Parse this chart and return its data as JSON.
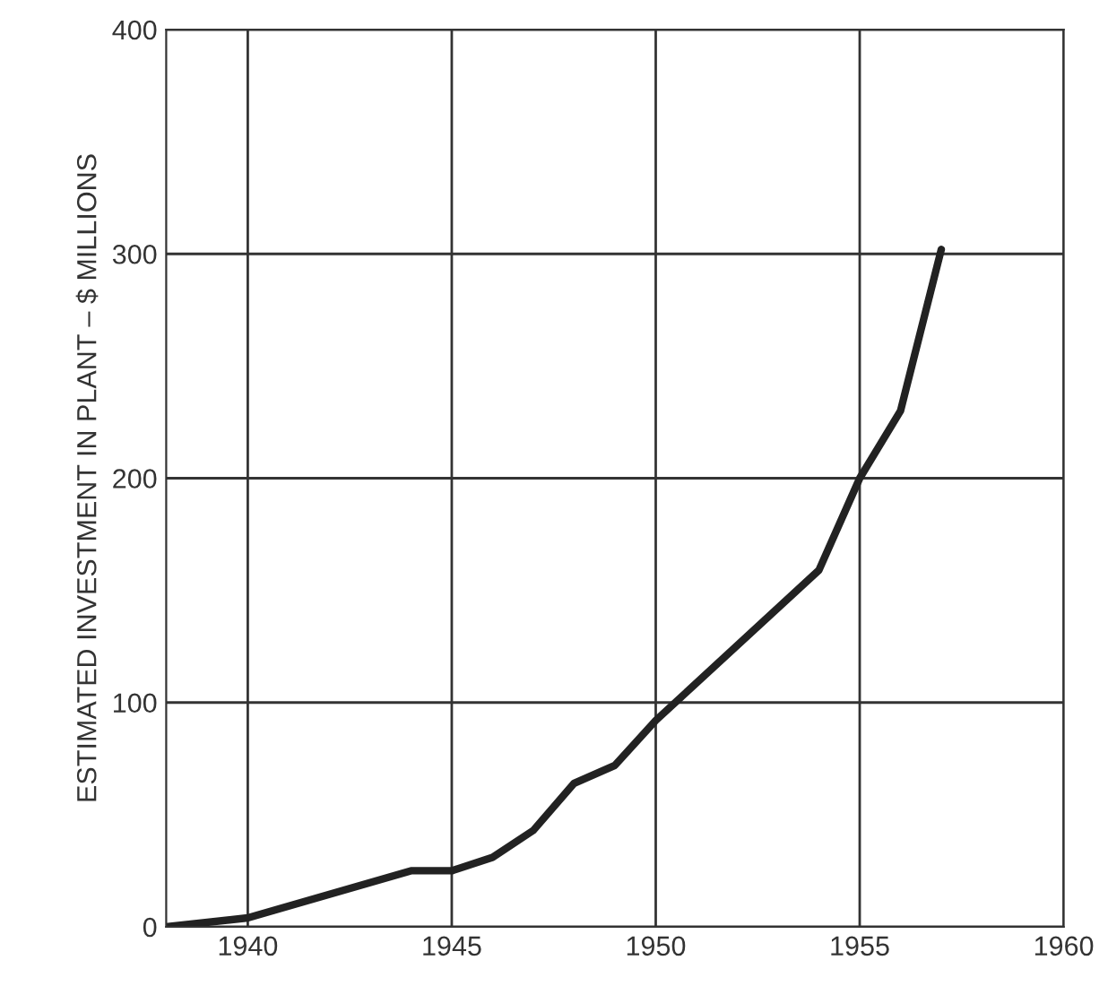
{
  "chart_data": {
    "type": "line",
    "ylabel": "ESTIMATED INVESTMENT IN PLANT – $ MILLIONS",
    "x": [
      1938,
      1940,
      1944,
      1945,
      1946,
      1947,
      1948,
      1949,
      1950,
      1954,
      1955,
      1956,
      1957
    ],
    "series": [
      {
        "color": "#222222",
        "values": [
          0,
          4,
          25,
          25,
          31,
          43,
          64,
          72,
          92,
          159,
          200,
          230,
          302
        ]
      }
    ],
    "xlim": [
      1938,
      1960
    ],
    "xticks": [
      1940,
      1945,
      1950,
      1955,
      1960
    ],
    "ylim": [
      0,
      400
    ],
    "yticks": [
      0,
      100,
      200,
      300,
      400
    ],
    "grid": true,
    "line_style": "solid",
    "marker": "none"
  }
}
